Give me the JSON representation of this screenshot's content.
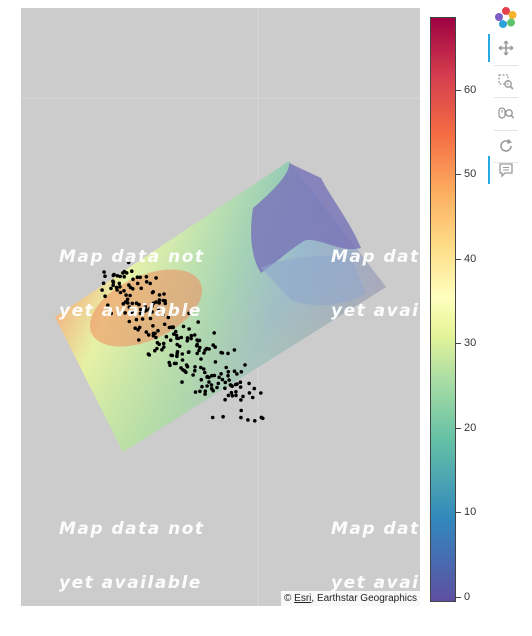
{
  "map": {
    "placeholder_line1": "Map data not",
    "placeholder_line2": "yet available",
    "attribution_prefix": "© ",
    "attribution_link": "Esri",
    "attribution_suffix": ", Earthstar Geographics"
  },
  "colorbar": {
    "min": 0,
    "max": 68,
    "ticks": [
      "0",
      "10",
      "20",
      "30",
      "40",
      "50",
      "60"
    ],
    "palette": [
      "#5e4fa2",
      "#3288bd",
      "#66c2a5",
      "#abdda4",
      "#e6f598",
      "#ffffbf",
      "#fee08b",
      "#fdae61",
      "#f46d43",
      "#d53e4f",
      "#9e0142"
    ]
  },
  "toolbar": {
    "tools": [
      {
        "name": "logo",
        "icon": "bokeh-logo-icon",
        "active": false
      },
      {
        "name": "pan",
        "icon": "pan-icon",
        "active": true
      },
      {
        "name": "box-zoom",
        "icon": "box-zoom-icon",
        "active": false
      },
      {
        "name": "wheel-zoom",
        "icon": "wheel-zoom-icon",
        "active": false
      },
      {
        "name": "reset",
        "icon": "reset-icon",
        "active": false
      },
      {
        "name": "hover",
        "icon": "hover-icon",
        "active": true
      }
    ]
  }
}
